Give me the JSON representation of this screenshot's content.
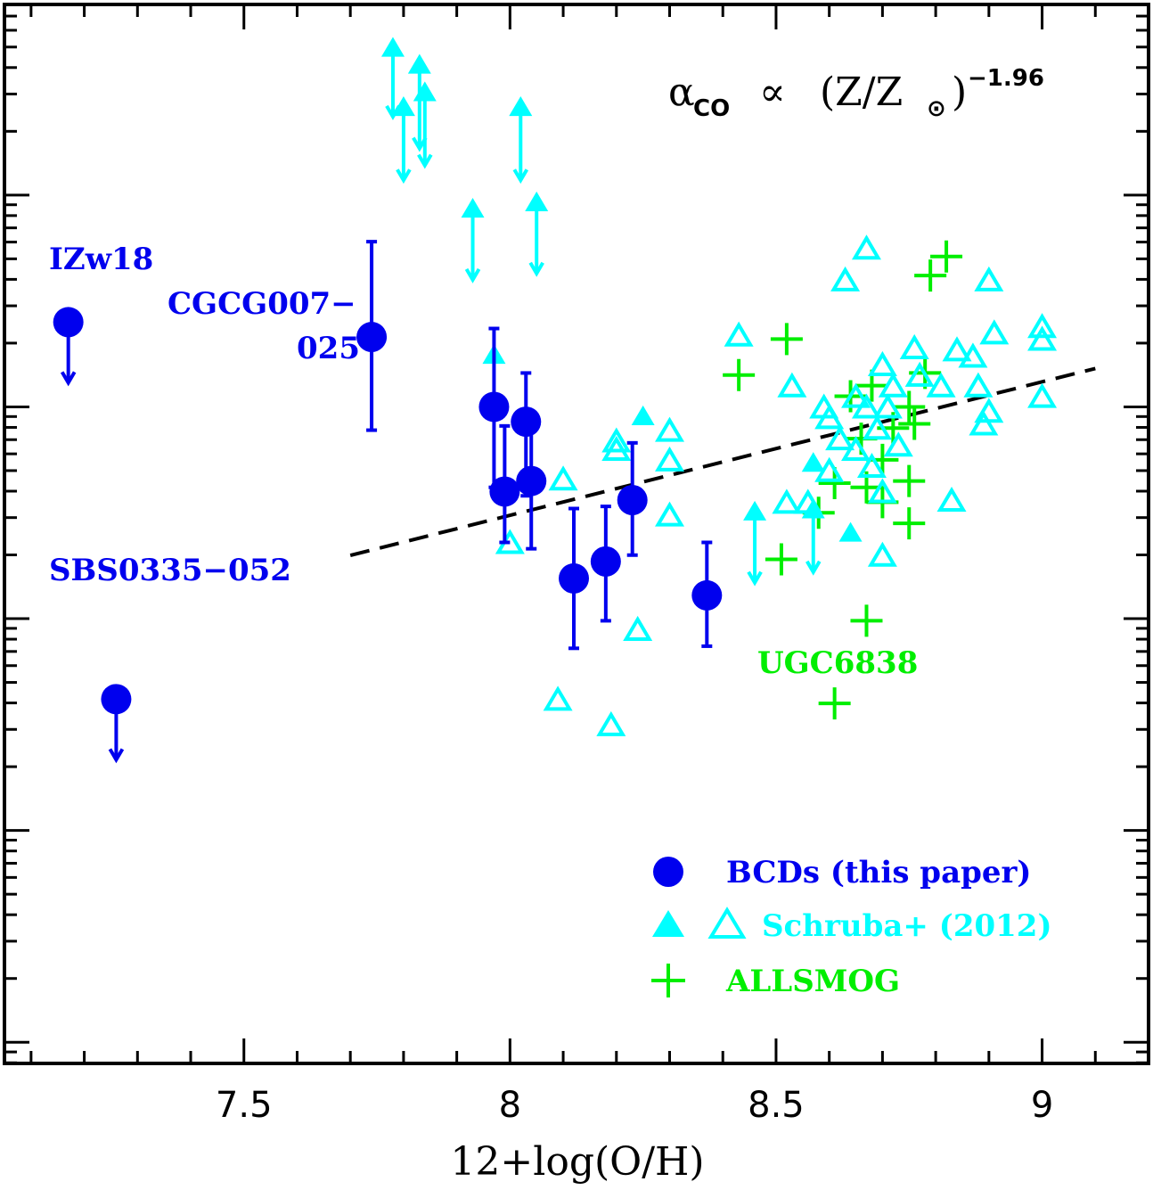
{
  "chart_data": {
    "type": "scatter",
    "xlabel": "12+log(O/H)",
    "ylabel": "",
    "xlim": [
      7.05,
      9.2
    ],
    "ylog_range": [
      -0.1,
      4.9
    ],
    "xticks": [
      7.5,
      8,
      8.5,
      9
    ],
    "xtick_labels": [
      "7.5",
      "8",
      "8.5",
      "9"
    ],
    "formula": {
      "base": "α",
      "sub": "CO",
      "prop": "∝",
      "paren": "(Z/Z",
      "sun": "⊙",
      "close": ")",
      "exp": "−1.96"
    },
    "fit_line": {
      "label": "dashed fit",
      "x": [
        7.7,
        9.1
      ],
      "logy": [
        2.2988,
        3.1812
      ]
    },
    "colors": {
      "bcd": "#0000ee",
      "schruba": "#00ffff",
      "allsmog": "#00ee00",
      "fit": "#000000"
    },
    "series": [
      {
        "name": "BCDs (this paper)",
        "marker": "filled-circle",
        "points": [
          {
            "x": 7.74,
            "logy": 3.33,
            "err_lo": 2.89,
            "err_hi": 3.78
          },
          {
            "x": 7.97,
            "logy": 3.0,
            "err_lo": 2.62,
            "err_hi": 3.37
          },
          {
            "x": 7.99,
            "logy": 2.6,
            "err_lo": 2.36,
            "err_hi": 2.91
          },
          {
            "x": 8.03,
            "logy": 2.93,
            "err_lo": 2.58,
            "err_hi": 3.16
          },
          {
            "x": 8.04,
            "logy": 2.65,
            "err_lo": 2.33,
            "err_hi": 2.97
          },
          {
            "x": 8.12,
            "logy": 2.19,
            "err_lo": 1.86,
            "err_hi": 2.52
          },
          {
            "x": 8.18,
            "logy": 2.27,
            "err_lo": 1.99,
            "err_hi": 2.53
          },
          {
            "x": 8.23,
            "logy": 2.56,
            "err_lo": 2.3,
            "err_hi": 2.83
          },
          {
            "x": 8.37,
            "logy": 2.11,
            "err_lo": 1.87,
            "err_hi": 2.36
          }
        ],
        "upper_limits": [
          {
            "x": 7.17,
            "logy": 3.4,
            "label": "IZw18"
          },
          {
            "x": 7.26,
            "logy": 1.62,
            "label": "SBS0335-052"
          }
        ]
      },
      {
        "name": "Schruba+ (2012)",
        "marker": "triangle",
        "filled": [
          [
            7.97,
            3.25
          ],
          [
            8.25,
            2.96
          ],
          [
            8.57,
            2.74
          ],
          [
            8.64,
            2.41
          ]
        ],
        "filled_bidirectional": [
          [
            7.78,
            4.7,
            4.37
          ],
          [
            7.8,
            4.42,
            4.07
          ],
          [
            7.83,
            4.62,
            4.22
          ],
          [
            7.84,
            4.49,
            4.14
          ],
          [
            8.02,
            4.42,
            4.07
          ],
          [
            7.93,
            3.94,
            3.6
          ],
          [
            8.05,
            3.97,
            3.63
          ],
          [
            8.46,
            2.51,
            2.17
          ],
          [
            8.57,
            2.52,
            2.22
          ]
        ],
        "open": [
          [
            8.0,
            2.36
          ],
          [
            8.1,
            2.66
          ],
          [
            8.2,
            2.8
          ],
          [
            8.2,
            2.84
          ],
          [
            8.3,
            2.89
          ],
          [
            8.3,
            2.75
          ],
          [
            8.3,
            2.49
          ],
          [
            8.09,
            1.62
          ],
          [
            8.19,
            1.5
          ],
          [
            8.24,
            1.95
          ],
          [
            8.43,
            3.34
          ],
          [
            8.53,
            3.1
          ],
          [
            8.52,
            2.55
          ],
          [
            8.56,
            2.55
          ],
          [
            8.6,
            2.7
          ],
          [
            8.6,
            2.95
          ],
          [
            8.63,
            3.6
          ],
          [
            8.65,
            2.8
          ],
          [
            8.67,
            3.75
          ],
          [
            8.67,
            3.0
          ],
          [
            8.69,
            2.9
          ],
          [
            8.7,
            3.2
          ],
          [
            8.72,
            3.1
          ],
          [
            8.7,
            2.6
          ],
          [
            8.68,
            2.72
          ],
          [
            8.73,
            2.82
          ],
          [
            8.7,
            2.3
          ],
          [
            8.76,
            3.28
          ],
          [
            8.77,
            3.15
          ],
          [
            8.81,
            3.1
          ],
          [
            8.83,
            2.56
          ],
          [
            8.84,
            3.27
          ],
          [
            8.87,
            3.24
          ],
          [
            8.88,
            3.1
          ],
          [
            8.9,
            2.98
          ],
          [
            8.91,
            3.35
          ],
          [
            8.9,
            3.6
          ],
          [
            9.0,
            3.38
          ],
          [
            9.0,
            3.32
          ],
          [
            9.0,
            3.05
          ],
          [
            8.89,
            2.92
          ],
          [
            8.59,
            3.0
          ],
          [
            8.62,
            2.85
          ],
          [
            8.65,
            3.05
          ],
          [
            8.71,
            3.0
          ]
        ]
      },
      {
        "name": "ALLSMOG",
        "marker": "plus",
        "points": [
          [
            8.43,
            3.15
          ],
          [
            8.52,
            3.32
          ],
          [
            8.51,
            2.28
          ],
          [
            8.58,
            2.5
          ],
          [
            8.61,
            2.64
          ],
          [
            8.61,
            1.6
          ],
          [
            8.67,
            1.99
          ],
          [
            8.67,
            2.62
          ],
          [
            8.7,
            2.75
          ],
          [
            8.72,
            2.9
          ],
          [
            8.75,
            3.0
          ],
          [
            8.75,
            2.65
          ],
          [
            8.75,
            2.45
          ],
          [
            8.78,
            3.16
          ],
          [
            8.79,
            3.62
          ],
          [
            8.82,
            3.71
          ],
          [
            8.66,
            2.85
          ],
          [
            8.7,
            2.55
          ],
          [
            8.64,
            3.05
          ],
          [
            8.68,
            3.1
          ],
          [
            8.76,
            2.92
          ]
        ],
        "annotation": {
          "label": "UGC6838"
        }
      }
    ],
    "annotations": {
      "izw18": "IZw18",
      "cgcg_line1": "CGCG007−",
      "cgcg_line2": "025",
      "sbs": "SBS0335−052",
      "ugc": "UGC6838"
    },
    "legend": {
      "position": "bottom-right",
      "entries": [
        "BCDs (this paper)",
        "Schruba+ (2012)",
        "ALLSMOG"
      ]
    }
  }
}
